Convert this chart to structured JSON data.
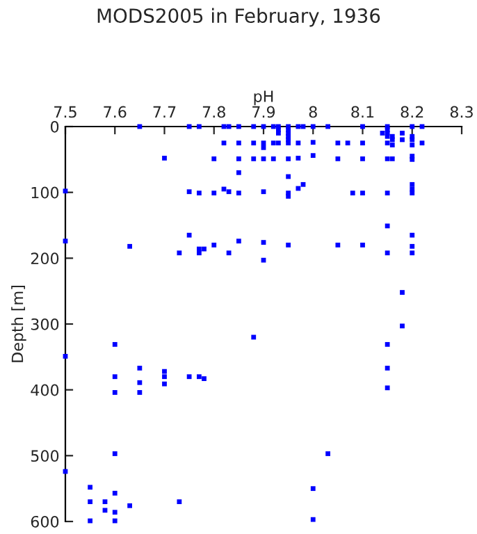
{
  "chart_data": {
    "type": "scatter",
    "title": "MODS2005 in February, 1936",
    "xlabel": "pH",
    "ylabel": "Depth [m]",
    "xlim": [
      7.5,
      8.3
    ],
    "xticks": [
      7.5,
      7.6,
      7.7,
      7.8,
      7.9,
      8,
      8.1,
      8.2,
      8.3
    ],
    "ylim": [
      600,
      0
    ],
    "yticks": [
      0,
      100,
      200,
      300,
      400,
      500,
      600
    ],
    "grid": false,
    "marker": "square",
    "series": [
      {
        "color": "#0000ff",
        "x": [
          7.65,
          7.75,
          7.77,
          7.82,
          7.83,
          7.85,
          7.88,
          7.9,
          7.92,
          7.93,
          7.95,
          7.97,
          7.98,
          8.0,
          8.03,
          8.1,
          8.15,
          8.2,
          8.22,
          7.93,
          7.93,
          7.95,
          7.95,
          7.95,
          7.95,
          8.15,
          8.15,
          8.15,
          8.14,
          8.16,
          8.16,
          8.16,
          8.18,
          8.18,
          8.2,
          8.2,
          8.2,
          8.22,
          7.82,
          7.85,
          7.88,
          7.9,
          7.92,
          7.93,
          7.95,
          7.97,
          8.0,
          8.05,
          8.07,
          8.1,
          8.15,
          7.9,
          7.7,
          8.0,
          7.8,
          7.85,
          7.88,
          7.9,
          7.92,
          7.95,
          7.97,
          8.05,
          8.1,
          8.15,
          8.16,
          8.2,
          8.2,
          7.85,
          7.95,
          7.98,
          7.97,
          7.5,
          7.75,
          7.77,
          7.8,
          7.82,
          7.83,
          7.85,
          7.9,
          7.95,
          7.95,
          8.08,
          8.1,
          8.15,
          8.2,
          8.2,
          8.2,
          8.15,
          7.75,
          8.2,
          7.5,
          7.85,
          7.9,
          7.8,
          7.95,
          8.05,
          8.1,
          8.2,
          7.63,
          7.77,
          7.78,
          7.73,
          7.77,
          7.83,
          8.15,
          8.2,
          7.9,
          8.18,
          8.18,
          7.88,
          7.6,
          8.15,
          7.5,
          7.65,
          8.15,
          7.7,
          7.6,
          7.7,
          7.75,
          7.77,
          7.78,
          7.65,
          7.7,
          8.15,
          7.6,
          7.65,
          7.6,
          8.03,
          7.5,
          7.55,
          8.0,
          7.6,
          7.55,
          7.58,
          7.73,
          7.63,
          7.58,
          7.6,
          8.0,
          7.55,
          7.6
        ],
        "values": [
          0,
          0,
          0,
          0,
          0,
          0,
          0,
          0,
          0,
          0,
          0,
          0,
          0,
          0,
          0,
          0,
          0,
          0,
          0,
          5,
          10,
          5,
          10,
          15,
          20,
          5,
          10,
          15,
          10,
          15,
          20,
          28,
          10,
          20,
          15,
          20,
          28,
          25,
          25,
          25,
          25,
          25,
          25,
          25,
          25,
          25,
          24,
          25,
          25,
          25,
          25,
          32,
          48,
          44,
          49,
          49,
          49,
          49,
          49,
          49,
          48,
          49,
          49,
          49,
          49,
          45,
          50,
          70,
          76,
          88,
          94,
          98,
          99,
          101,
          101,
          95,
          99,
          101,
          99,
          101,
          106,
          101,
          101,
          101,
          88,
          95,
          101,
          151,
          165,
          165,
          174,
          174,
          176,
          180,
          180,
          180,
          180,
          182,
          182,
          186,
          186,
          192,
          192,
          192,
          192,
          192,
          203,
          252,
          303,
          320,
          331,
          331,
          349,
          367,
          367,
          372,
          380,
          380,
          380,
          380,
          383,
          389,
          391,
          397,
          404,
          404,
          497,
          497,
          524,
          548,
          550,
          557,
          570,
          570,
          570,
          576,
          583,
          586,
          597,
          599,
          599
        ]
      }
    ]
  }
}
